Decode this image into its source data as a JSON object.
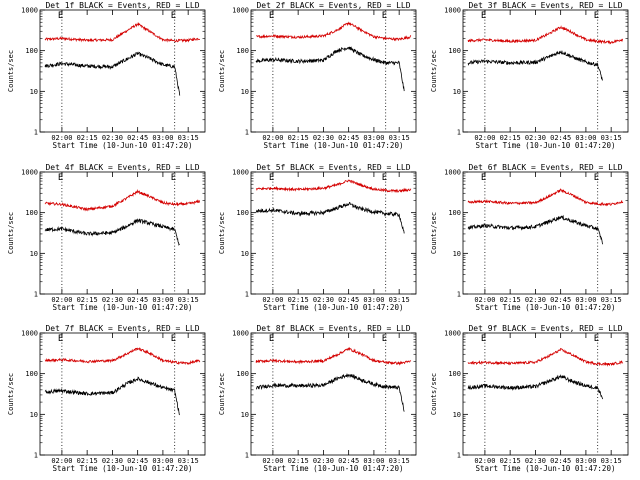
{
  "chart_data": {
    "type": "line",
    "layout": "3x3 grid",
    "ylabel": "Counts/sec",
    "xlabel": "Start Time (10-Jun-10 01:47:20)",
    "y_scale": "log",
    "ylim": [
      1,
      1000
    ],
    "y_ticks": [
      1,
      10,
      100,
      1000
    ],
    "y_tick_labels": [
      "1",
      "10",
      "100",
      "1000"
    ],
    "x_range_minutes": [
      "01:47",
      "03:25"
    ],
    "x_ticks": [
      "02:00",
      "02:15",
      "02:30",
      "02:45",
      "03:00",
      "03:15"
    ],
    "vertical_markers": [
      "02:00",
      "03:07"
    ],
    "marker_label": "E",
    "series_colors": {
      "Events": "#000000",
      "LLD": "#d40000"
    },
    "panels": [
      {
        "title": "Det 1f BLACK = Events, RED = LLD",
        "series": [
          {
            "name": "LLD",
            "color": "#d40000",
            "x": [
              "01:50",
              "02:00",
              "02:15",
              "02:30",
              "02:38",
              "02:45",
              "02:52",
              "03:00",
              "03:07",
              "03:15",
              "03:22"
            ],
            "values": [
              190,
              200,
              180,
              185,
              300,
              450,
              300,
              185,
              175,
              180,
              200
            ]
          },
          {
            "name": "Events",
            "color": "#000000",
            "x": [
              "01:50",
              "02:00",
              "02:15",
              "02:30",
              "02:38",
              "02:45",
              "02:52",
              "03:00",
              "03:07",
              "03:10"
            ],
            "values": [
              42,
              48,
              42,
              40,
              60,
              85,
              65,
              45,
              40,
              8
            ]
          }
        ]
      },
      {
        "title": "Det 2f BLACK = Events, RED = LLD",
        "series": [
          {
            "name": "LLD",
            "color": "#d40000",
            "x": [
              "01:50",
              "02:00",
              "02:15",
              "02:30",
              "02:38",
              "02:45",
              "02:52",
              "03:00",
              "03:07",
              "03:15",
              "03:22"
            ],
            "values": [
              220,
              230,
              215,
              230,
              320,
              480,
              330,
              220,
              200,
              190,
              220
            ]
          },
          {
            "name": "Events",
            "color": "#000000",
            "x": [
              "01:50",
              "02:00",
              "02:15",
              "02:30",
              "02:38",
              "02:45",
              "02:52",
              "03:00",
              "03:07",
              "03:15",
              "03:18"
            ],
            "values": [
              55,
              60,
              55,
              58,
              100,
              120,
              80,
              60,
              50,
              50,
              10
            ]
          }
        ]
      },
      {
        "title": "Det 3f BLACK = Events, RED = LLD",
        "series": [
          {
            "name": "LLD",
            "color": "#d40000",
            "x": [
              "01:50",
              "02:00",
              "02:15",
              "02:30",
              "02:38",
              "02:45",
              "02:52",
              "03:00",
              "03:07",
              "03:15",
              "03:22"
            ],
            "values": [
              175,
              185,
              170,
              180,
              260,
              380,
              280,
              185,
              170,
              160,
              190
            ]
          },
          {
            "name": "Events",
            "color": "#000000",
            "x": [
              "01:50",
              "02:00",
              "02:15",
              "02:30",
              "02:38",
              "02:45",
              "02:52",
              "03:00",
              "03:07",
              "03:10"
            ],
            "values": [
              50,
              55,
              50,
              52,
              70,
              95,
              70,
              52,
              45,
              18
            ]
          }
        ]
      },
      {
        "title": "Det 4f BLACK = Events, RED = LLD",
        "series": [
          {
            "name": "LLD",
            "color": "#d40000",
            "x": [
              "01:50",
              "02:00",
              "02:15",
              "02:30",
              "02:38",
              "02:45",
              "02:52",
              "03:00",
              "03:07",
              "03:15",
              "03:22"
            ],
            "values": [
              170,
              160,
              120,
              145,
              220,
              330,
              250,
              175,
              160,
              165,
              190
            ]
          },
          {
            "name": "Events",
            "color": "#000000",
            "x": [
              "01:50",
              "02:00",
              "02:15",
              "02:30",
              "02:38",
              "02:45",
              "02:52",
              "03:00",
              "03:07",
              "03:10"
            ],
            "values": [
              38,
              40,
              30,
              32,
              45,
              65,
              55,
              45,
              38,
              15
            ]
          }
        ]
      },
      {
        "title": "Det 5f BLACK = Events, RED = LLD",
        "series": [
          {
            "name": "LLD",
            "color": "#d40000",
            "x": [
              "01:50",
              "02:00",
              "02:15",
              "02:30",
              "02:38",
              "02:45",
              "02:52",
              "03:00",
              "03:07",
              "03:15",
              "03:22"
            ],
            "values": [
              380,
              400,
              370,
              400,
              480,
              620,
              480,
              380,
              350,
              340,
              370
            ]
          },
          {
            "name": "Events",
            "color": "#000000",
            "x": [
              "01:50",
              "02:00",
              "02:15",
              "02:30",
              "02:38",
              "02:45",
              "02:52",
              "03:00",
              "03:07",
              "03:15",
              "03:18"
            ],
            "values": [
              110,
              115,
              95,
              100,
              130,
              165,
              125,
              105,
              95,
              90,
              30
            ]
          }
        ]
      },
      {
        "title": "Det 6f BLACK = Events, RED = LLD",
        "series": [
          {
            "name": "LLD",
            "color": "#d40000",
            "x": [
              "01:50",
              "02:00",
              "02:15",
              "02:30",
              "02:38",
              "02:45",
              "02:52",
              "03:00",
              "03:07",
              "03:15",
              "03:22"
            ],
            "values": [
              180,
              190,
              170,
              175,
              250,
              360,
              270,
              180,
              165,
              160,
              190
            ]
          },
          {
            "name": "Events",
            "color": "#000000",
            "x": [
              "01:50",
              "02:00",
              "02:15",
              "02:30",
              "02:38",
              "02:45",
              "02:52",
              "03:00",
              "03:07",
              "03:10"
            ],
            "values": [
              42,
              48,
              42,
              45,
              60,
              78,
              62,
              48,
              40,
              18
            ]
          }
        ]
      },
      {
        "title": "Det 7f BLACK = Events, RED = LLD",
        "series": [
          {
            "name": "LLD",
            "color": "#d40000",
            "x": [
              "01:50",
              "02:00",
              "02:15",
              "02:30",
              "02:38",
              "02:45",
              "02:52",
              "03:00",
              "03:07",
              "03:15",
              "03:22"
            ],
            "values": [
              210,
              220,
              200,
              210,
              300,
              420,
              320,
              210,
              190,
              180,
              210
            ]
          },
          {
            "name": "Events",
            "color": "#000000",
            "x": [
              "01:50",
              "02:00",
              "02:15",
              "02:30",
              "02:38",
              "02:45",
              "02:52",
              "03:00",
              "03:07",
              "03:10"
            ],
            "values": [
              35,
              38,
              32,
              34,
              55,
              75,
              60,
              45,
              38,
              9
            ]
          }
        ]
      },
      {
        "title": "Det 8f BLACK = Events, RED = LLD",
        "series": [
          {
            "name": "LLD",
            "color": "#d40000",
            "x": [
              "01:50",
              "02:00",
              "02:15",
              "02:30",
              "02:38",
              "02:45",
              "02:52",
              "03:00",
              "03:07",
              "03:15",
              "03:22"
            ],
            "values": [
              200,
              210,
              195,
              205,
              290,
              410,
              310,
              210,
              190,
              180,
              200
            ]
          },
          {
            "name": "Events",
            "color": "#000000",
            "x": [
              "01:50",
              "02:00",
              "02:15",
              "02:30",
              "02:38",
              "02:45",
              "02:52",
              "03:00",
              "03:07",
              "03:15",
              "03:18"
            ],
            "values": [
              45,
              52,
              50,
              52,
              75,
              95,
              72,
              55,
              48,
              45,
              12
            ]
          }
        ]
      },
      {
        "title": "Det 9f BLACK = Events, RED = LLD",
        "series": [
          {
            "name": "LLD",
            "color": "#d40000",
            "x": [
              "01:50",
              "02:00",
              "02:15",
              "02:30",
              "02:38",
              "02:45",
              "02:52",
              "03:00",
              "03:07",
              "03:15",
              "03:22"
            ],
            "values": [
              180,
              190,
              180,
              190,
              270,
              390,
              290,
              195,
              175,
              170,
              195
            ]
          },
          {
            "name": "Events",
            "color": "#000000",
            "x": [
              "01:50",
              "02:00",
              "02:15",
              "02:30",
              "02:38",
              "02:45",
              "02:52",
              "03:00",
              "03:07",
              "03:10"
            ],
            "values": [
              45,
              50,
              45,
              48,
              65,
              85,
              65,
              50,
              45,
              25
            ]
          }
        ]
      }
    ]
  }
}
